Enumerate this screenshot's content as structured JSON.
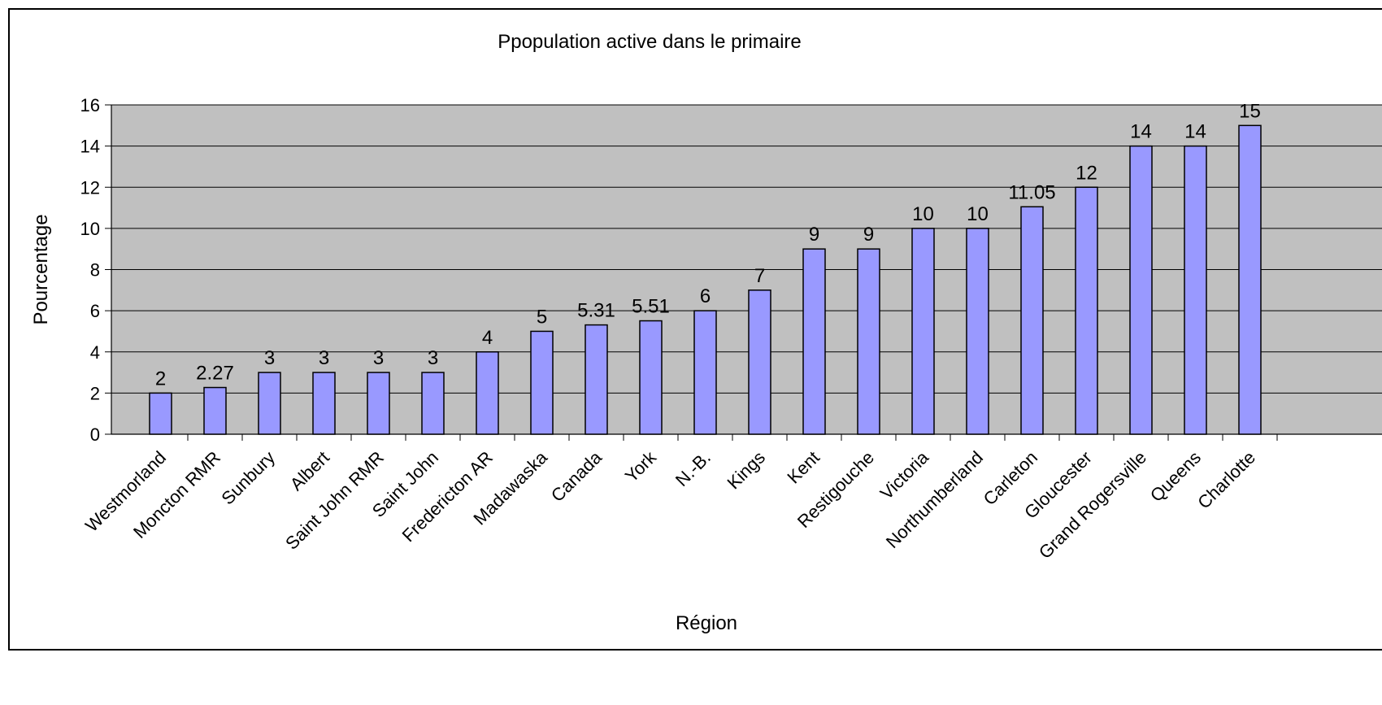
{
  "chart_data": {
    "type": "bar",
    "title": "Ppopulation active dans le primaire",
    "xlabel": "Région",
    "ylabel": "Pourcentage",
    "ylim": [
      0,
      16
    ],
    "yticks": [
      0,
      2,
      4,
      6,
      8,
      10,
      12,
      14,
      16
    ],
    "grid": true,
    "legend": "none",
    "colors": {
      "bar_fill": "#9999ff",
      "bar_stroke": "#000000",
      "plot_background": "#c0c0c0",
      "gridline": "#000000"
    },
    "categories": [
      "Westmorland",
      "Moncton RMR",
      "Sunbury",
      "Albert",
      "Saint John RMR",
      "Saint John",
      "Fredericton AR",
      "Madawaska",
      "Canada",
      "York",
      "N.-B.",
      "Kings",
      "Kent",
      "Restigouche",
      "Victoria",
      "Northumberland",
      "Carleton",
      "Gloucester",
      "Grand Rogersville",
      "Queens",
      "Charlotte"
    ],
    "values": [
      2,
      2.27,
      3,
      3,
      3,
      3,
      4,
      5,
      5.31,
      5.51,
      6,
      7,
      9,
      9,
      10,
      10,
      11.05,
      12,
      14,
      14,
      15
    ],
    "value_labels": [
      "2",
      "2.27",
      "3",
      "3",
      "3",
      "3",
      "4",
      "5",
      "5.31",
      "5.51",
      "6",
      "7",
      "9",
      "9",
      "10",
      "10",
      "11.05",
      "12",
      "14",
      "14",
      "15"
    ]
  }
}
